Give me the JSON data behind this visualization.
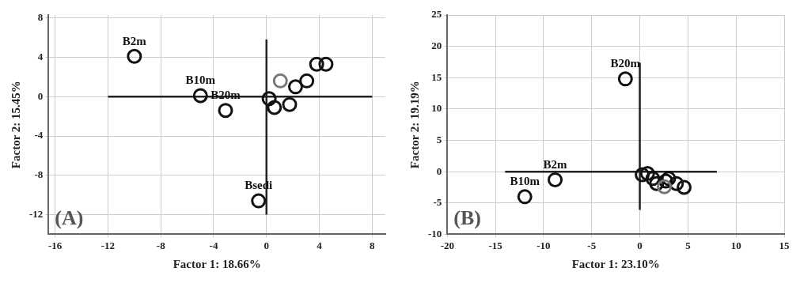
{
  "chart_data": [
    {
      "type": "scatter",
      "xlabel": "Factor 1: 18.66%",
      "ylabel": "Factor 2: 15.45%",
      "annotations": [
        "(A)"
      ],
      "xlim": [
        -16.5,
        9
      ],
      "ylim": [
        -14,
        8.3
      ],
      "xticks": [
        -16,
        -12,
        -8,
        -4,
        0,
        4,
        8
      ],
      "yticks": [
        -12,
        -8,
        -4,
        0,
        4,
        8
      ],
      "grid": true,
      "marker": "circle",
      "series": [
        {
          "type": "line",
          "marker": "none",
          "color": "#222222",
          "x": [
            -12,
            8
          ],
          "values": [
            0,
            0
          ]
        },
        {
          "type": "line",
          "marker": "none",
          "color": "#222222",
          "x": [
            0,
            0
          ],
          "values": [
            5.8,
            -12
          ]
        },
        {
          "x": [
            -10,
            -5.0,
            -3.1,
            -0.6,
            0.2,
            0.6,
            1.75,
            1.05,
            2.2,
            3.05,
            3.8,
            4.5
          ],
          "values": [
            4.1,
            0.1,
            -1.4,
            -10.6,
            -0.2,
            -1.1,
            -0.8,
            1.6,
            1.0,
            1.6,
            3.3,
            3.3
          ],
          "colors": [
            "#111111",
            "#111111",
            "#111111",
            "#111111",
            "#111111",
            "#111111",
            "#111111",
            "#777777",
            "#111111",
            "#111111",
            "#111111",
            "#111111"
          ],
          "value_labels": [
            "B2m",
            "B10m",
            "B20m",
            "Bsedi",
            null,
            null,
            null,
            null,
            null,
            null,
            null,
            null
          ]
        }
      ]
    },
    {
      "type": "scatter",
      "xlabel": "Factor 1: 23.10%",
      "ylabel": "Factor 2: 19.19%",
      "annotations": [
        "(B)"
      ],
      "xlim": [
        -20,
        15
      ],
      "ylim": [
        -10,
        25
      ],
      "xticks": [
        -20,
        -15,
        -10,
        -5,
        0,
        5,
        10,
        15
      ],
      "yticks": [
        -10,
        -5,
        0,
        5,
        10,
        15,
        20,
        25
      ],
      "grid": true,
      "marker": "circle",
      "series": [
        {
          "type": "line",
          "marker": "none",
          "color": "#222222",
          "x": [
            -14,
            8
          ],
          "values": [
            0,
            0
          ]
        },
        {
          "type": "line",
          "marker": "none",
          "color": "#222222",
          "x": [
            0,
            0
          ],
          "values": [
            17.4,
            -6.1
          ]
        },
        {
          "x": [
            -1.5,
            -8.8,
            -11.95,
            0.25,
            0.8,
            1.35,
            1.75,
            2.7,
            3.0,
            3.8,
            4.6,
            2.55
          ],
          "values": [
            14.8,
            -1.3,
            -4.0,
            -0.5,
            -0.3,
            -1.1,
            -1.9,
            -1.5,
            -1.1,
            -1.9,
            -2.5,
            -2.4
          ],
          "colors": [
            "#111111",
            "#111111",
            "#111111",
            "#111111",
            "#111111",
            "#111111",
            "#111111",
            "#111111",
            "#111111",
            "#111111",
            "#111111",
            "#777777"
          ],
          "value_labels": [
            "B20m",
            "B2m",
            "B10m",
            null,
            null,
            null,
            null,
            null,
            null,
            null,
            null,
            null
          ]
        }
      ]
    }
  ]
}
